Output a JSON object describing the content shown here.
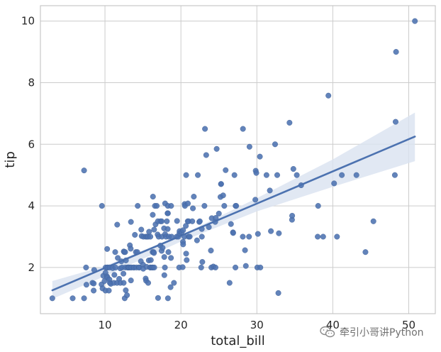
{
  "chart_data": {
    "type": "scatter",
    "title": "",
    "xlabel": "total_bill",
    "ylabel": "tip",
    "xlim": [
      1.5,
      53.5
    ],
    "ylim": [
      0.5,
      10.5
    ],
    "x_ticks": [
      10,
      20,
      30,
      40,
      50
    ],
    "y_ticks": [
      2,
      4,
      6,
      8,
      10
    ],
    "grid": true,
    "style": "seaborn-whitegrid",
    "colors": {
      "points": "#4c72b0",
      "line": "#4c72b0",
      "band": "#dbe3f0",
      "grid": "#cccccc",
      "axis": "#bdbdbd"
    },
    "points": [
      [
        3.07,
        1.0
      ],
      [
        5.75,
        1.0
      ],
      [
        7.25,
        1.0
      ],
      [
        7.25,
        5.15
      ],
      [
        7.51,
        2.0
      ],
      [
        7.56,
        1.44
      ],
      [
        8.35,
        1.5
      ],
      [
        8.51,
        1.25
      ],
      [
        8.52,
        1.48
      ],
      [
        8.58,
        1.92
      ],
      [
        9.55,
        1.45
      ],
      [
        9.6,
        4.0
      ],
      [
        9.68,
        1.32
      ],
      [
        9.78,
        1.73
      ],
      [
        9.94,
        1.56
      ],
      [
        10.07,
        1.83
      ],
      [
        10.07,
        1.25
      ],
      [
        10.09,
        2.0
      ],
      [
        10.27,
        1.71
      ],
      [
        10.29,
        2.6
      ],
      [
        10.33,
        1.67
      ],
      [
        10.33,
        2.0
      ],
      [
        10.34,
        2.0
      ],
      [
        10.51,
        1.25
      ],
      [
        10.59,
        1.61
      ],
      [
        10.63,
        2.0
      ],
      [
        10.65,
        1.5
      ],
      [
        10.77,
        1.47
      ],
      [
        11.02,
        1.98
      ],
      [
        11.17,
        1.5
      ],
      [
        11.24,
        1.76
      ],
      [
        11.35,
        2.5
      ],
      [
        11.38,
        2.0
      ],
      [
        11.59,
        1.5
      ],
      [
        11.61,
        3.39
      ],
      [
        11.69,
        2.31
      ],
      [
        11.87,
        1.63
      ],
      [
        12.02,
        1.97
      ],
      [
        12.03,
        1.5
      ],
      [
        12.16,
        2.2
      ],
      [
        12.26,
        2.0
      ],
      [
        12.43,
        1.8
      ],
      [
        12.46,
        1.5
      ],
      [
        12.48,
        2.52
      ],
      [
        12.54,
        2.5
      ],
      [
        12.6,
        1.0
      ],
      [
        12.66,
        2.5
      ],
      [
        12.69,
        2.0
      ],
      [
        12.74,
        1.26
      ],
      [
        12.76,
        2.23
      ],
      [
        12.9,
        1.1
      ],
      [
        13.0,
        2.0
      ],
      [
        13.03,
        2.0
      ],
      [
        13.13,
        2.0
      ],
      [
        13.16,
        2.0
      ],
      [
        13.28,
        2.72
      ],
      [
        13.37,
        2.0
      ],
      [
        13.39,
        2.61
      ],
      [
        13.42,
        1.58
      ],
      [
        13.42,
        3.48
      ],
      [
        13.51,
        2.0
      ],
      [
        13.81,
        2.0
      ],
      [
        13.81,
        2.0
      ],
      [
        13.94,
        3.06
      ],
      [
        14.07,
        2.5
      ],
      [
        14.15,
        2.0
      ],
      [
        14.26,
        2.5
      ],
      [
        14.31,
        4.0
      ],
      [
        14.48,
        2.0
      ],
      [
        14.52,
        2.0
      ],
      [
        14.73,
        2.2
      ],
      [
        14.78,
        3.23
      ],
      [
        14.83,
        3.02
      ],
      [
        15.01,
        2.09
      ],
      [
        15.04,
        1.96
      ],
      [
        15.06,
        3.0
      ],
      [
        15.36,
        1.64
      ],
      [
        15.38,
        3.0
      ],
      [
        15.42,
        1.57
      ],
      [
        15.48,
        2.02
      ],
      [
        15.53,
        3.0
      ],
      [
        15.69,
        1.5
      ],
      [
        15.69,
        3.0
      ],
      [
        15.77,
        2.23
      ],
      [
        15.81,
        3.16
      ],
      [
        15.95,
        2.0
      ],
      [
        15.98,
        3.0
      ],
      [
        16.0,
        2.0
      ],
      [
        16.04,
        2.24
      ],
      [
        16.21,
        2.0
      ],
      [
        16.27,
        2.5
      ],
      [
        16.29,
        3.71
      ],
      [
        16.31,
        2.0
      ],
      [
        16.32,
        4.3
      ],
      [
        16.4,
        2.5
      ],
      [
        16.45,
        2.47
      ],
      [
        16.47,
        3.23
      ],
      [
        16.49,
        2.0
      ],
      [
        16.58,
        4.0
      ],
      [
        16.66,
        3.4
      ],
      [
        16.82,
        4.0
      ],
      [
        16.93,
        3.07
      ],
      [
        16.97,
        3.5
      ],
      [
        16.99,
        1.01
      ],
      [
        17.07,
        3.0
      ],
      [
        17.29,
        2.71
      ],
      [
        17.31,
        3.5
      ],
      [
        17.46,
        2.54
      ],
      [
        17.47,
        3.5
      ],
      [
        17.51,
        3.0
      ],
      [
        17.59,
        2.64
      ],
      [
        17.78,
        3.27
      ],
      [
        17.81,
        2.34
      ],
      [
        17.82,
        1.75
      ],
      [
        17.89,
        2.0
      ],
      [
        17.92,
        4.08
      ],
      [
        17.92,
        3.08
      ],
      [
        18.04,
        3.0
      ],
      [
        18.15,
        3.5
      ],
      [
        18.24,
        3.76
      ],
      [
        18.26,
        3.25
      ],
      [
        18.28,
        4.0
      ],
      [
        18.29,
        3.76
      ],
      [
        18.29,
        1.0
      ],
      [
        18.35,
        2.5
      ],
      [
        18.43,
        3.0
      ],
      [
        18.64,
        1.36
      ],
      [
        18.69,
        2.31
      ],
      [
        18.71,
        4.0
      ],
      [
        18.78,
        3.0
      ],
      [
        19.08,
        1.5
      ],
      [
        19.44,
        3.0
      ],
      [
        19.49,
        3.51
      ],
      [
        19.65,
        3.0
      ],
      [
        19.77,
        2.0
      ],
      [
        19.81,
        3.11
      ],
      [
        19.82,
        3.18
      ],
      [
        20.08,
        3.15
      ],
      [
        20.23,
        2.01
      ],
      [
        20.27,
        2.83
      ],
      [
        20.29,
        2.75
      ],
      [
        20.29,
        3.21
      ],
      [
        20.45,
        3.0
      ],
      [
        20.49,
        4.06
      ],
      [
        20.53,
        4.0
      ],
      [
        20.65,
        3.35
      ],
      [
        20.69,
        2.45
      ],
      [
        20.69,
        5.0
      ],
      [
        20.76,
        2.24
      ],
      [
        20.9,
        3.5
      ],
      [
        20.92,
        4.08
      ],
      [
        21.01,
        3.0
      ],
      [
        21.01,
        3.5
      ],
      [
        21.16,
        3.0
      ],
      [
        21.5,
        3.5
      ],
      [
        21.58,
        3.92
      ],
      [
        21.7,
        4.3
      ],
      [
        22.12,
        2.88
      ],
      [
        22.23,
        5.0
      ],
      [
        22.42,
        3.48
      ],
      [
        22.49,
        3.5
      ],
      [
        22.67,
        2.0
      ],
      [
        22.75,
        3.25
      ],
      [
        22.76,
        3.0
      ],
      [
        22.82,
        2.18
      ],
      [
        23.1,
        4.0
      ],
      [
        23.17,
        6.5
      ],
      [
        23.33,
        5.65
      ],
      [
        23.68,
        3.31
      ],
      [
        23.95,
        2.55
      ],
      [
        24.01,
        2.0
      ],
      [
        24.06,
        3.6
      ],
      [
        24.27,
        2.03
      ],
      [
        24.52,
        3.48
      ],
      [
        24.55,
        2.0
      ],
      [
        24.59,
        3.61
      ],
      [
        24.71,
        5.85
      ],
      [
        25.0,
        3.75
      ],
      [
        25.21,
        4.29
      ],
      [
        25.28,
        4.71
      ],
      [
        25.29,
        4.71
      ],
      [
        25.56,
        4.34
      ],
      [
        25.71,
        4.0
      ],
      [
        25.89,
        5.16
      ],
      [
        26.41,
        1.5
      ],
      [
        26.59,
        3.41
      ],
      [
        26.86,
        3.14
      ],
      [
        26.88,
        3.12
      ],
      [
        27.05,
        5.0
      ],
      [
        27.18,
        2.0
      ],
      [
        27.2,
        4.0
      ],
      [
        27.28,
        4.0
      ],
      [
        28.15,
        3.0
      ],
      [
        28.17,
        6.5
      ],
      [
        28.44,
        2.56
      ],
      [
        28.55,
        2.05
      ],
      [
        28.97,
        3.0
      ],
      [
        29.03,
        5.92
      ],
      [
        29.8,
        4.2
      ],
      [
        29.85,
        5.14
      ],
      [
        29.93,
        5.07
      ],
      [
        30.06,
        2.0
      ],
      [
        30.14,
        3.09
      ],
      [
        30.4,
        5.6
      ],
      [
        30.46,
        2.0
      ],
      [
        31.27,
        5.0
      ],
      [
        31.71,
        4.5
      ],
      [
        31.85,
        3.18
      ],
      [
        32.4,
        6.0
      ],
      [
        32.68,
        5.0
      ],
      [
        32.83,
        1.17
      ],
      [
        32.9,
        3.11
      ],
      [
        34.3,
        6.7
      ],
      [
        34.63,
        3.55
      ],
      [
        34.65,
        3.68
      ],
      [
        34.81,
        5.2
      ],
      [
        35.26,
        5.0
      ],
      [
        35.83,
        4.67
      ],
      [
        38.01,
        3.0
      ],
      [
        38.07,
        4.0
      ],
      [
        38.73,
        3.0
      ],
      [
        39.42,
        7.58
      ],
      [
        40.17,
        4.73
      ],
      [
        40.55,
        3.0
      ],
      [
        41.19,
        5.0
      ],
      [
        43.11,
        5.0
      ],
      [
        44.3,
        2.5
      ],
      [
        45.35,
        3.5
      ],
      [
        48.17,
        5.0
      ],
      [
        48.27,
        6.73
      ],
      [
        48.33,
        9.0
      ],
      [
        50.81,
        10.0
      ]
    ],
    "regression": {
      "x": [
        3.07,
        50.81
      ],
      "y": [
        1.26,
        6.25
      ]
    },
    "confidence_band": {
      "x": [
        3.07,
        10,
        20,
        30,
        40,
        50.81
      ],
      "lower": [
        0.98,
        1.72,
        2.84,
        3.82,
        4.62,
        5.45
      ],
      "upper": [
        1.56,
        2.05,
        3.05,
        4.25,
        5.51,
        7.03
      ]
    }
  },
  "watermark": {
    "text": "牵引小哥讲Python",
    "icon": "wechat-icon"
  }
}
